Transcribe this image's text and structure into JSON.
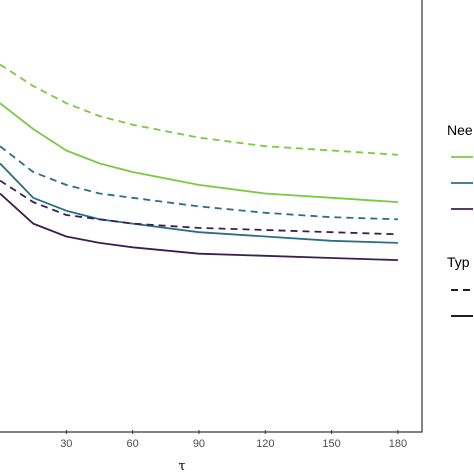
{
  "chart_data": {
    "type": "line",
    "xlabel": "τ",
    "ylabel": "",
    "xlim": [
      0,
      190
    ],
    "ylim": [
      0,
      1
    ],
    "x_ticks": [
      30,
      60,
      90,
      120,
      150,
      180
    ],
    "x_tick_labels": [
      "30",
      "60",
      "90",
      "120",
      "150",
      "180"
    ],
    "grid": false,
    "legend_placement": "right",
    "legends": [
      {
        "title": "Nee",
        "entries": [
          {
            "color": "#7ac943"
          },
          {
            "color": "#2a6f86"
          },
          {
            "color": "#3b1f4f"
          }
        ]
      },
      {
        "title": "Typ",
        "entries": [
          {
            "dash": "dashed"
          },
          {
            "dash": "solid"
          }
        ]
      }
    ],
    "series": [
      {
        "color": "#7ac943",
        "dash": "dashed",
        "x": [
          0,
          15,
          30,
          45,
          60,
          90,
          120,
          150,
          180
        ],
        "y": [
          0.85,
          0.8,
          0.76,
          0.73,
          0.71,
          0.68,
          0.66,
          0.65,
          0.64
        ]
      },
      {
        "color": "#7ac943",
        "dash": "solid",
        "x": [
          0,
          15,
          30,
          45,
          60,
          90,
          120,
          150,
          180
        ],
        "y": [
          0.76,
          0.7,
          0.65,
          0.62,
          0.6,
          0.57,
          0.55,
          0.54,
          0.53
        ]
      },
      {
        "color": "#2a6f86",
        "dash": "dashed",
        "x": [
          0,
          15,
          30,
          45,
          60,
          90,
          120,
          150,
          180
        ],
        "y": [
          0.66,
          0.6,
          0.57,
          0.55,
          0.54,
          0.52,
          0.505,
          0.495,
          0.49
        ]
      },
      {
        "color": "#2a6f86",
        "dash": "solid",
        "x": [
          0,
          15,
          30,
          45,
          60,
          90,
          120,
          150,
          180
        ],
        "y": [
          0.62,
          0.54,
          0.51,
          0.49,
          0.48,
          0.46,
          0.45,
          0.44,
          0.435
        ]
      },
      {
        "color": "#3b1f4f",
        "dash": "dashed",
        "x": [
          0,
          15,
          30,
          45,
          60,
          90,
          120,
          150,
          180
        ],
        "y": [
          0.58,
          0.53,
          0.5,
          0.49,
          0.48,
          0.47,
          0.465,
          0.46,
          0.455
        ]
      },
      {
        "color": "#3b1f4f",
        "dash": "solid",
        "x": [
          0,
          15,
          30,
          45,
          60,
          90,
          120,
          150,
          180
        ],
        "y": [
          0.55,
          0.48,
          0.45,
          0.435,
          0.425,
          0.41,
          0.405,
          0.4,
          0.395
        ]
      }
    ]
  }
}
